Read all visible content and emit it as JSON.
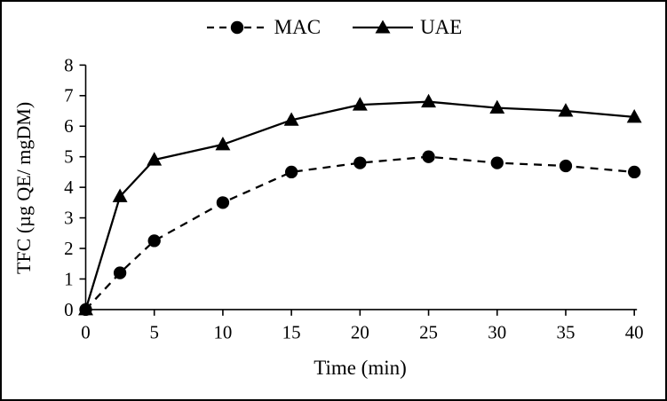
{
  "chart_data": {
    "type": "line",
    "x": [
      0,
      2.5,
      5,
      10,
      15,
      20,
      25,
      30,
      35,
      40
    ],
    "series": [
      {
        "name": "MAC",
        "values": [
          0,
          1.2,
          2.25,
          3.5,
          4.5,
          4.8,
          5.0,
          4.8,
          4.7,
          4.5
        ],
        "line": "dashed",
        "marker": "circle"
      },
      {
        "name": "UAE",
        "values": [
          0,
          3.7,
          4.9,
          5.4,
          6.2,
          6.7,
          6.8,
          6.6,
          6.5,
          6.3
        ],
        "line": "solid",
        "marker": "triangle"
      }
    ],
    "xlabel": "Time (min)",
    "ylabel": "TFC (µg QE/ mgDM)",
    "xlim": [
      0,
      40
    ],
    "ylim": [
      0,
      8
    ],
    "xticks": [
      0,
      5,
      10,
      15,
      20,
      25,
      30,
      35,
      40
    ],
    "yticks": [
      0,
      1,
      2,
      3,
      4,
      5,
      6,
      7,
      8
    ],
    "legend_position": "top-center",
    "grid": false,
    "color": "#000000"
  }
}
